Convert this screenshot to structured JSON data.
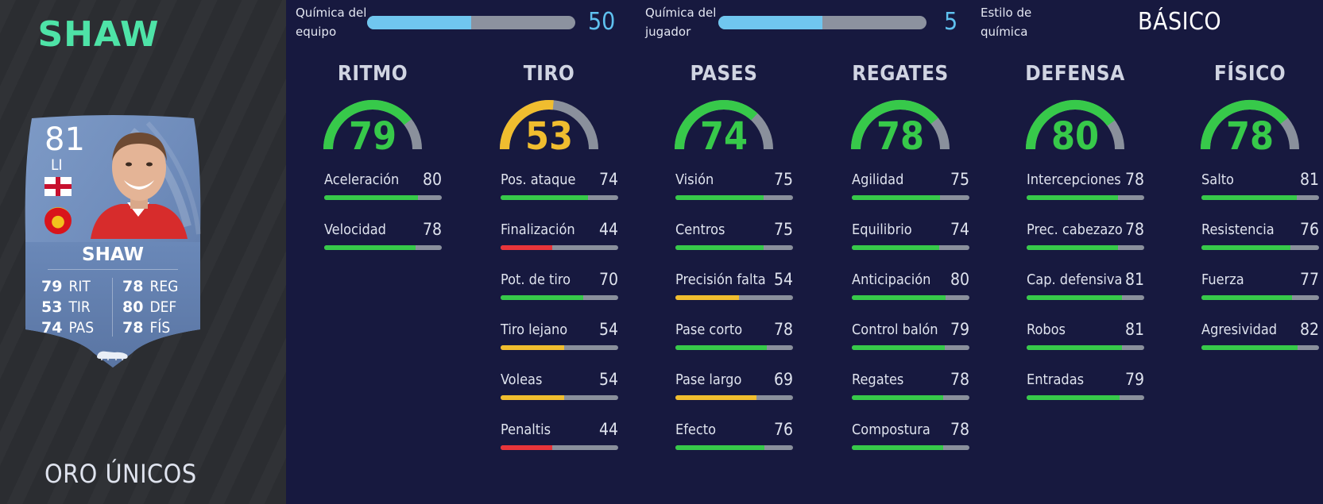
{
  "player": {
    "name_title": "SHAW",
    "card_name": "SHAW",
    "rating": "81",
    "position": "LI",
    "card_stats": [
      {
        "value": "79",
        "label": "RIT"
      },
      {
        "value": "53",
        "label": "TIR"
      },
      {
        "value": "74",
        "label": "PAS"
      },
      {
        "value": "78",
        "label": "REG"
      },
      {
        "value": "80",
        "label": "DEF"
      },
      {
        "value": "78",
        "label": "FÍS"
      }
    ],
    "card_quality": "ORO ÚNICOS",
    "icons": {
      "flag": "england-flag-icon",
      "club": "manchester-united-badge-icon",
      "boot": "boot-icon"
    }
  },
  "chemistry": {
    "team": {
      "label_line1": "Química del",
      "label_line2": "equipo",
      "value": "50",
      "fraction": 0.5
    },
    "player": {
      "label_line1": "Química del",
      "label_line2": "jugador",
      "value": "5",
      "fraction": 0.5
    },
    "style": {
      "label_line1": "Estilo de",
      "label_line2": "química",
      "value": "BÁSICO"
    }
  },
  "colors": {
    "high": "#37c94a",
    "mid": "#f0bd2f",
    "low": "#e8353a",
    "track": "#8a909c",
    "chem_fill": "#70c6ef",
    "name_accent": "#4ee3a7"
  },
  "categories": [
    {
      "title": "RITMO",
      "value": 79,
      "stats": [
        {
          "label": "Aceleración",
          "value": 80
        },
        {
          "label": "Velocidad",
          "value": 78
        }
      ]
    },
    {
      "title": "TIRO",
      "value": 53,
      "stats": [
        {
          "label": "Pos. ataque",
          "value": 74
        },
        {
          "label": "Finalización",
          "value": 44
        },
        {
          "label": "Pot. de tiro",
          "value": 70
        },
        {
          "label": "Tiro lejano",
          "value": 54
        },
        {
          "label": "Voleas",
          "value": 54
        },
        {
          "label": "Penaltis",
          "value": 44
        }
      ]
    },
    {
      "title": "PASES",
      "value": 74,
      "stats": [
        {
          "label": "Visión",
          "value": 75
        },
        {
          "label": "Centros",
          "value": 75
        },
        {
          "label": "Precisión falta",
          "value": 54
        },
        {
          "label": "Pase corto",
          "value": 78
        },
        {
          "label": "Pase largo",
          "value": 69
        },
        {
          "label": "Efecto",
          "value": 76
        }
      ]
    },
    {
      "title": "REGATES",
      "value": 78,
      "stats": [
        {
          "label": "Agilidad",
          "value": 75
        },
        {
          "label": "Equilibrio",
          "value": 74
        },
        {
          "label": "Anticipación",
          "value": 80
        },
        {
          "label": "Control balón",
          "value": 79
        },
        {
          "label": "Regates",
          "value": 78
        },
        {
          "label": "Compostura",
          "value": 78
        }
      ]
    },
    {
      "title": "DEFENSA",
      "value": 80,
      "stats": [
        {
          "label": "Intercepciones",
          "value": 78
        },
        {
          "label": "Prec. cabezazo",
          "value": 78
        },
        {
          "label": "Cap. defensiva",
          "value": 81
        },
        {
          "label": "Robos",
          "value": 81
        },
        {
          "label": "Entradas",
          "value": 79
        }
      ]
    },
    {
      "title": "FÍSICO",
      "value": 78,
      "stats": [
        {
          "label": "Salto",
          "value": 81
        },
        {
          "label": "Resistencia",
          "value": 76
        },
        {
          "label": "Fuerza",
          "value": 77
        },
        {
          "label": "Agresividad",
          "value": 82
        }
      ]
    }
  ]
}
